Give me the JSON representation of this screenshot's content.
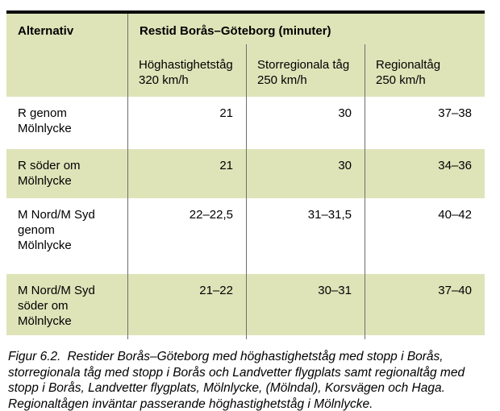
{
  "table": {
    "corner_header": "Alternativ",
    "span_header": "Restid Borås–Göteborg (minuter)",
    "columns": [
      {
        "name": "Höghastighetståg",
        "speed": "320 km/h",
        "text": "Höghastighetståg\n320 km/h"
      },
      {
        "name": "Storregionala tåg",
        "speed": "250 km/h",
        "text": "Storregionala tåg\n250 km/h"
      },
      {
        "name": "Regionaltåg",
        "speed": "250 km/h",
        "text": "Regionaltåg\n250 km/h"
      }
    ],
    "rows": [
      {
        "label": "R genom\nMölnlycke",
        "values": [
          "21",
          "30",
          "37–38"
        ]
      },
      {
        "label": "R söder om\nMölnlycke",
        "values": [
          "21",
          "30",
          "34–36"
        ]
      },
      {
        "label": "M Nord/M Syd\ngenom\nMölnlycke",
        "values": [
          "22–22,5",
          "31–31,5",
          "40–42"
        ]
      },
      {
        "label": "M Nord/M Syd\nsöder om\nMölnlycke",
        "values": [
          "21–22",
          "30–31",
          "37–40"
        ]
      }
    ]
  },
  "caption": {
    "label": "Figur 6.2.",
    "text": "Restider Borås–Göteborg med höghastighetståg med stopp i Borås, storregionala tåg med stopp i Borås och Landvetter flygplats samt regionaltåg med stopp i Borås, Landvetter flygplats, Mölnlycke, (Mölndal), Korsvägen och Haga. Regionaltågen inväntar passerande höghastighetståg i Mölnlycke."
  },
  "colors": {
    "row_green": "#dee4b8",
    "divider_gray": "#6e6e6e",
    "top_rule_black": "#0b0b0b"
  }
}
